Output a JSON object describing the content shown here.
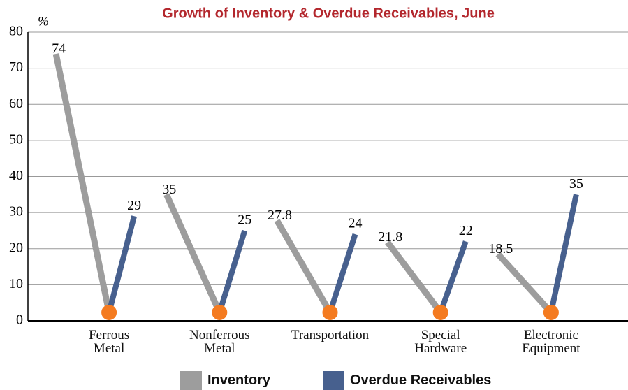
{
  "chart_data": {
    "type": "line",
    "title": "Growth of Inventory & Overdue Receivables, June",
    "y_label": "%",
    "categories": [
      "Ferrous\nMetal",
      "Nonferrous\nMetal",
      "Transportation",
      "Special\nHardware",
      "Electronic\nEquipment"
    ],
    "series": [
      {
        "name": "Inventory",
        "color": "#9d9d9d",
        "values": [
          74,
          35,
          27.8,
          21.8,
          18.5
        ]
      },
      {
        "name": "Overdue Receivables",
        "color": "#47608e",
        "values": [
          29,
          25,
          24,
          22,
          35
        ]
      }
    ],
    "ylim": [
      0,
      80
    ],
    "yticks": [
      0,
      10,
      20,
      30,
      40,
      50,
      60,
      70,
      80
    ],
    "grid": true
  }
}
